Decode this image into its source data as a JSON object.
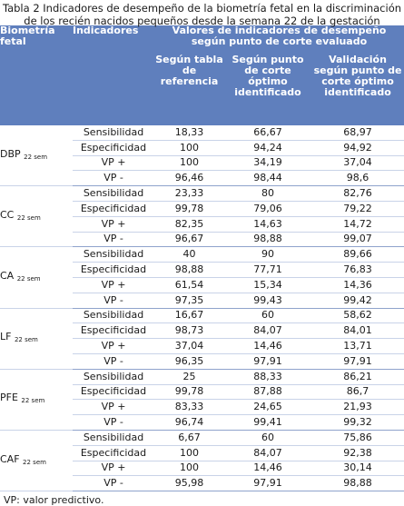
{
  "caption": {
    "line1": "Tabla 2 Indicadores de desempeño de la biometría fetal en la discriminación",
    "line2": "de los recién nacidos pequeños desde la semana 22 de la gestación"
  },
  "headers": {
    "biometria": "Biometría fetal",
    "indicadores": "Indicadores",
    "valores": "Valores de indicadores de desempeño según punto de corte evaluado",
    "col1": "Según tabla de referencia",
    "col2": "Según punto de corte óptimo identificado",
    "col3": "Validación según punto de corte óptimo identificado"
  },
  "groups": [
    {
      "name": "DBP",
      "sub": "22 sem",
      "rows": [
        {
          "ind": "Sensibilidad",
          "v": [
            "18,33",
            "66,67",
            "68,97"
          ]
        },
        {
          "ind": "Especificidad",
          "v": [
            "100",
            "94,24",
            "94,92"
          ]
        },
        {
          "ind": "VP +",
          "v": [
            "100",
            "34,19",
            "37,04"
          ]
        },
        {
          "ind": "VP -",
          "v": [
            "96,46",
            "98,44",
            "98,6"
          ]
        }
      ]
    },
    {
      "name": "CC",
      "sub": "22 sem",
      "rows": [
        {
          "ind": "Sensibilidad",
          "v": [
            "23,33",
            "80",
            "82,76"
          ]
        },
        {
          "ind": "Especificidad",
          "v": [
            "99,78",
            "79,06",
            "79,22"
          ]
        },
        {
          "ind": "VP +",
          "v": [
            "82,35",
            "14,63",
            "14,72"
          ]
        },
        {
          "ind": "VP -",
          "v": [
            "96,67",
            "98,88",
            "99,07"
          ]
        }
      ]
    },
    {
      "name": "CA",
      "sub": "22 sem",
      "rows": [
        {
          "ind": "Sensibilidad",
          "v": [
            "40",
            "90",
            "89,66"
          ]
        },
        {
          "ind": "Especificidad",
          "v": [
            "98,88",
            "77,71",
            "76,83"
          ]
        },
        {
          "ind": "VP +",
          "v": [
            "61,54",
            "15,34",
            "14,36"
          ]
        },
        {
          "ind": "VP -",
          "v": [
            "97,35",
            "99,43",
            "99,42"
          ]
        }
      ]
    },
    {
      "name": "LF",
      "sub": "22 sem",
      "rows": [
        {
          "ind": "Sensibilidad",
          "v": [
            "16,67",
            "60",
            "58,62"
          ]
        },
        {
          "ind": "Especificidad",
          "v": [
            "98,73",
            "84,07",
            "84,01"
          ]
        },
        {
          "ind": "VP +",
          "v": [
            "37,04",
            "14,46",
            "13,71"
          ]
        },
        {
          "ind": "VP -",
          "v": [
            "96,35",
            "97,91",
            "97,91"
          ]
        }
      ]
    },
    {
      "name": "PFE",
      "sub": "22 sem",
      "rows": [
        {
          "ind": "Sensibilidad",
          "v": [
            "25",
            "88,33",
            "86,21"
          ]
        },
        {
          "ind": "Especificidad",
          "v": [
            "99,78",
            "87,88",
            "86,7"
          ]
        },
        {
          "ind": "VP +",
          "v": [
            "83,33",
            "24,65",
            "21,93"
          ]
        },
        {
          "ind": "VP -",
          "v": [
            "96,74",
            "99,41",
            "99,32"
          ]
        }
      ]
    },
    {
      "name": "CAF",
      "sub": "22 sem",
      "rows": [
        {
          "ind": "Sensibilidad",
          "v": [
            "6,67",
            "60",
            "75,86"
          ]
        },
        {
          "ind": "Especificidad",
          "v": [
            "100",
            "84,07",
            "92,38"
          ]
        },
        {
          "ind": "VP +",
          "v": [
            "100",
            "14,46",
            "30,14"
          ]
        },
        {
          "ind": "VP -",
          "v": [
            "95,98",
            "97,91",
            "98,88"
          ]
        }
      ]
    }
  ],
  "footnote": "VP: valor predictivo."
}
